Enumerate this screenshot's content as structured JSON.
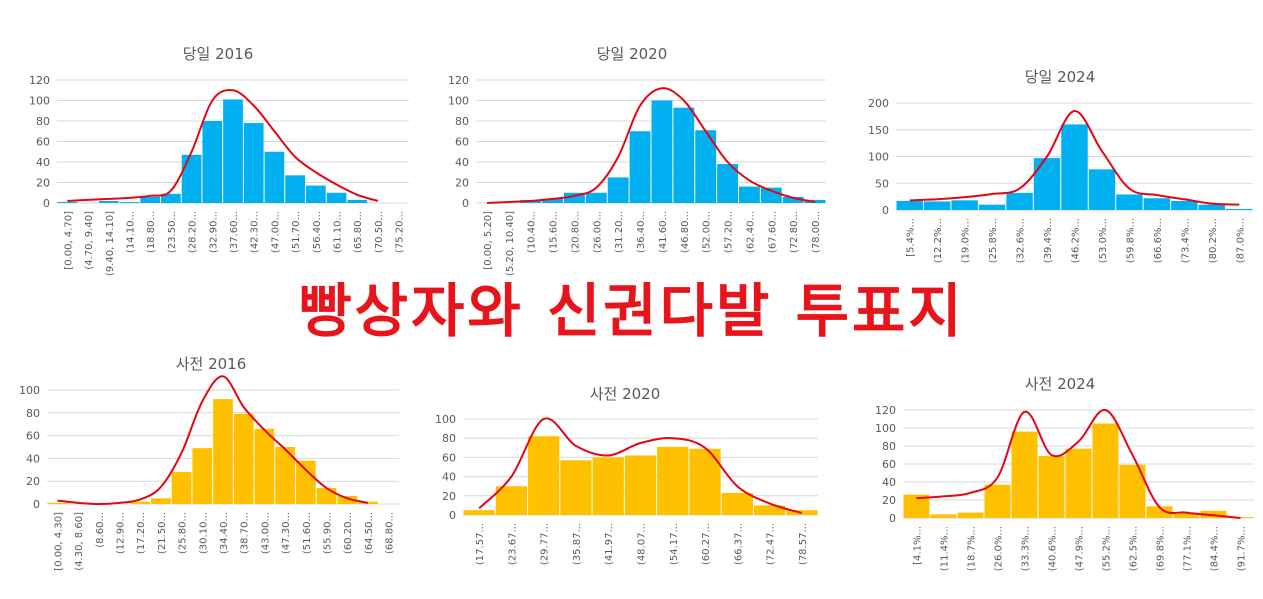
{
  "headline": "빵상자와 신권다발 투표지",
  "colors": {
    "blue_bar": "#00b0f0",
    "orange_bar": "#ffc000",
    "curve": "#e30613",
    "headline": "#e8141c",
    "grid": "#d9d9d9"
  },
  "chart_data": [
    {
      "type": "bar",
      "title": "당일 2016",
      "ylim": [
        0,
        120
      ],
      "yticks": [
        0,
        20,
        40,
        60,
        80,
        100,
        120
      ],
      "categories": [
        "[0.00, 4.70]",
        "(4.70, 9.40]",
        "(9.40, 14.10]",
        "(14.10...",
        "(18.80...",
        "(23.50...",
        "(28.20...",
        "(32.90...",
        "(37.60...",
        "(42.30...",
        "(47.00...",
        "(51.70...",
        "(56.40...",
        "(61.10...",
        "(65.80...",
        "(70.50...",
        "(75.20..."
      ],
      "values": [
        1,
        0,
        2,
        1,
        6,
        9,
        47,
        80,
        101,
        78,
        50,
        27,
        17,
        10,
        3,
        0,
        0
      ],
      "curve": [
        2,
        3,
        4,
        5,
        7,
        12,
        50,
        100,
        110,
        95,
        70,
        45,
        30,
        18,
        8,
        2
      ],
      "bar_color": "blue"
    },
    {
      "type": "bar",
      "title": "당일 2020",
      "ylim": [
        0,
        120
      ],
      "yticks": [
        0,
        20,
        40,
        60,
        80,
        100,
        120
      ],
      "categories": [
        "[0.00, 5.20]",
        "(5.20, 10.40]",
        "(10.40...",
        "(15.60...",
        "(20.80...",
        "(26.00...",
        "(31.20...",
        "(36.40...",
        "(41.60...",
        "(46.80...",
        "(52.00...",
        "(57.20...",
        "(62.40...",
        "(67.60...",
        "(72.80...",
        "(78.00..."
      ],
      "values": [
        0,
        0,
        3,
        4,
        10,
        10,
        25,
        70,
        100,
        93,
        71,
        38,
        16,
        15,
        6,
        3
      ],
      "curve": [
        0,
        1,
        2,
        4,
        7,
        15,
        45,
        95,
        112,
        100,
        70,
        40,
        22,
        12,
        5,
        1
      ],
      "bar_color": "blue"
    },
    {
      "type": "bar",
      "title": "당일 2024",
      "ylim": [
        0,
        200
      ],
      "yticks": [
        0,
        50,
        100,
        150,
        200
      ],
      "categories": [
        "[5.4%...",
        "(12.2%...",
        "(19.0%...",
        "(25.8%...",
        "(32.6%...",
        "(39.4%...",
        "(46.2%...",
        "(53.0%...",
        "(59.8%...",
        "(66.6%...",
        "(73.4%...",
        "(80.2%...",
        "(87.0%..."
      ],
      "values": [
        17,
        16,
        18,
        10,
        32,
        97,
        160,
        76,
        29,
        22,
        17,
        10,
        2
      ],
      "curve": [
        18,
        20,
        24,
        30,
        40,
        100,
        185,
        110,
        40,
        28,
        20,
        12,
        10
      ],
      "bar_color": "blue"
    },
    {
      "type": "bar",
      "title": "사전 2016",
      "ylim": [
        0,
        100
      ],
      "yticks": [
        0,
        20,
        40,
        60,
        80,
        100
      ],
      "categories": [
        "[0.00, 4.30]",
        "(4.30, 8.60]",
        "(8.60...",
        "(12.90...",
        "(17.20...",
        "(21.50...",
        "(25.80...",
        "(30.10...",
        "(34.40...",
        "(38.70...",
        "(43.00...",
        "(47.30...",
        "(51.60...",
        "(55.90...",
        "(60.20...",
        "(64.50...",
        "(68.80..."
      ],
      "values": [
        1,
        0,
        0,
        0,
        2,
        5,
        28,
        49,
        92,
        79,
        66,
        50,
        38,
        14,
        7,
        2,
        0
      ],
      "curve": [
        3,
        1,
        0,
        1,
        4,
        15,
        45,
        90,
        112,
        85,
        65,
        48,
        30,
        14,
        5,
        1
      ],
      "bar_color": "orange"
    },
    {
      "type": "bar",
      "title": "사전 2020",
      "ylim": [
        0,
        100
      ],
      "yticks": [
        0,
        20,
        40,
        60,
        80,
        100
      ],
      "categories": [
        "(17.57...",
        "(23.67...",
        "(29.77...",
        "(35.87...",
        "(41.97...",
        "(48.07...",
        "(54.17...",
        "(60.27...",
        "(66.37...",
        "(72.47...",
        "(78.57..."
      ],
      "values": [
        5,
        30,
        82,
        57,
        60,
        62,
        71,
        69,
        23,
        10,
        5
      ],
      "curve": [
        7,
        40,
        100,
        72,
        62,
        75,
        80,
        70,
        30,
        12,
        2
      ],
      "bar_color": "orange"
    },
    {
      "type": "bar",
      "title": "사전 2024",
      "ylim": [
        0,
        120
      ],
      "yticks": [
        0,
        20,
        40,
        60,
        80,
        100,
        120
      ],
      "categories": [
        "[4.1%...",
        "(11.4%...",
        "(18.7%...",
        "(26.0%...",
        "(33.3%...",
        "(40.6%...",
        "(47.9%...",
        "(55.2%...",
        "(62.5%...",
        "(69.8%...",
        "(77.1%...",
        "(84.4%...",
        "(91.7%..."
      ],
      "values": [
        26,
        4,
        6,
        37,
        96,
        69,
        77,
        105,
        59,
        13,
        6,
        8,
        1
      ],
      "curve": [
        22,
        24,
        28,
        45,
        118,
        70,
        85,
        120,
        70,
        12,
        6,
        3,
        0
      ],
      "bar_color": "orange"
    }
  ]
}
